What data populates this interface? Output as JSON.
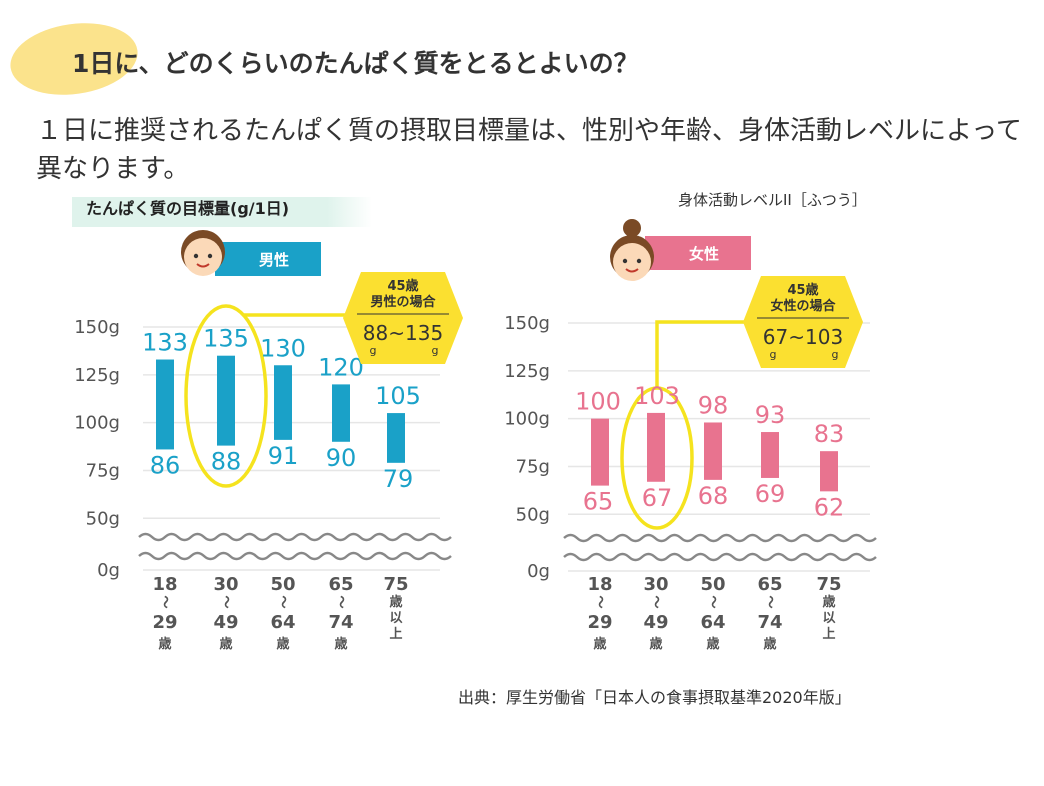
{
  "header": {
    "title": "1日に、どのくらいのたんぱく質をとるとよいの？",
    "lead": "１日に推奨されるたんぱく質の摂取目標量は、性別や年齢、身体活動レベルによって異なります。"
  },
  "chart_subtitle": "たんぱく質の目標量(g/1日)",
  "activity_level": "身体活動レベルII［ふつう］",
  "source": "出典：厚生労働省「日本人の食事摂取基準2020年版」",
  "colors": {
    "male": "#1aa1c8",
    "female": "#e8738f",
    "highlight": "#f5e31e",
    "badge": "#fbe030",
    "blob": "#fbe38c",
    "subtitle_bg": "#dff3ec"
  },
  "chart_data": [
    {
      "type": "bar",
      "gender_label": "男性",
      "color": "#1aa1c8",
      "y_ticks": [
        "150g",
        "125g",
        "100g",
        "75g",
        "50g",
        "0g"
      ],
      "categories": [
        {
          "lines": [
            "18",
            "〜",
            "29",
            "歳"
          ]
        },
        {
          "lines": [
            "30",
            "〜",
            "49",
            "歳"
          ]
        },
        {
          "lines": [
            "50",
            "〜",
            "64",
            "歳"
          ]
        },
        {
          "lines": [
            "65",
            "〜",
            "74",
            "歳"
          ]
        },
        {
          "lines": [
            "75",
            "歳",
            "以",
            "上"
          ]
        }
      ],
      "ranges": [
        {
          "low": 86,
          "high": 133
        },
        {
          "low": 88,
          "high": 135
        },
        {
          "low": 91,
          "high": 130
        },
        {
          "low": 90,
          "high": 120
        },
        {
          "low": 79,
          "high": 105
        }
      ],
      "highlight_index": 1,
      "callout": {
        "age": "45歳",
        "label": "男性の場合",
        "low": "88",
        "high": "135",
        "sep": "~",
        "unit": "g"
      }
    },
    {
      "type": "bar",
      "gender_label": "女性",
      "color": "#e8738f",
      "y_ticks": [
        "150g",
        "125g",
        "100g",
        "75g",
        "50g",
        "0g"
      ],
      "categories": [
        {
          "lines": [
            "18",
            "〜",
            "29",
            "歳"
          ]
        },
        {
          "lines": [
            "30",
            "〜",
            "49",
            "歳"
          ]
        },
        {
          "lines": [
            "50",
            "〜",
            "64",
            "歳"
          ]
        },
        {
          "lines": [
            "65",
            "〜",
            "74",
            "歳"
          ]
        },
        {
          "lines": [
            "75",
            "歳",
            "以",
            "上"
          ]
        }
      ],
      "ranges": [
        {
          "low": 65,
          "high": 100
        },
        {
          "low": 67,
          "high": 103
        },
        {
          "low": 68,
          "high": 98
        },
        {
          "low": 69,
          "high": 93
        },
        {
          "low": 62,
          "high": 83
        }
      ],
      "highlight_index": 1,
      "callout": {
        "age": "45歳",
        "label": "女性の場合",
        "low": "67",
        "high": "103",
        "sep": "~",
        "unit": "g"
      }
    }
  ]
}
